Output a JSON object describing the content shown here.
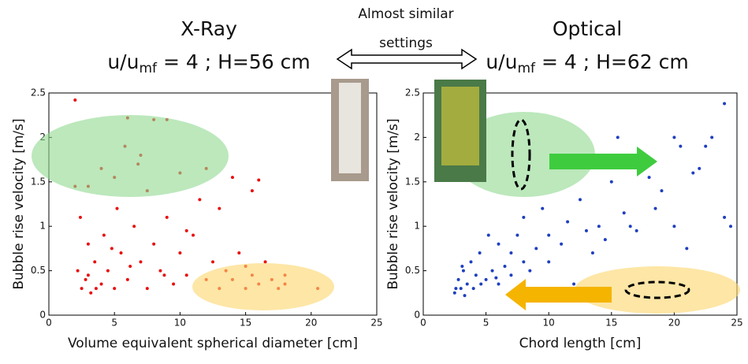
{
  "annotation": {
    "line1": "Almost similar",
    "line2": "settings"
  },
  "chart_data": [
    {
      "type": "scatter",
      "title": "X-Ray",
      "subtitle": {
        "main": "u/u",
        "sub": "mf",
        "rest": " = 4 ; H=56 cm"
      },
      "xlabel": "Volume equivalent spherical diameter [cm]",
      "ylabel": "Bubble rise velocity [m/s]",
      "color": "#e8100f",
      "xlim": [
        0,
        25
      ],
      "ylim": [
        0,
        2.5
      ],
      "xticks": [
        0,
        5,
        10,
        15,
        20,
        25
      ],
      "yticks": [
        0,
        0.5,
        1,
        1.5,
        2,
        2.5
      ],
      "x": [
        2,
        2,
        2.5,
        2.2,
        2.8,
        3,
        3.2,
        3.5,
        2.4,
        4,
        4.2,
        4.5,
        5,
        5.2,
        5.5,
        5.8,
        6,
        6,
        6.5,
        7,
        7,
        7.5,
        7.5,
        8,
        8,
        8.5,
        9,
        9,
        9.5,
        10,
        10,
        10.5,
        11,
        11.5,
        12,
        12,
        12.5,
        13,
        13,
        13.5,
        14,
        14,
        14.5,
        15,
        15,
        15.5,
        15.5,
        16,
        16,
        16.5,
        17,
        17.5,
        18,
        18,
        20.5,
        3,
        3.6,
        4.8,
        6.2,
        8.8,
        5,
        4,
        6.8,
        3,
        10.5
      ],
      "values": [
        2.42,
        1.45,
        0.3,
        0.5,
        0.4,
        0.8,
        0.25,
        0.6,
        1.1,
        0.35,
        0.9,
        0.5,
        0.3,
        1.2,
        0.7,
        1.9,
        2.22,
        0.4,
        1.0,
        0.6,
        1.8,
        0.3,
        1.4,
        0.8,
        2.2,
        0.5,
        1.1,
        2.2,
        0.35,
        0.7,
        1.6,
        0.45,
        0.9,
        1.3,
        0.4,
        1.65,
        0.6,
        0.3,
        1.2,
        0.5,
        0.4,
        1.55,
        0.7,
        0.3,
        0.55,
        1.4,
        0.45,
        0.35,
        1.52,
        0.6,
        0.4,
        0.3,
        0.45,
        0.35,
        0.3,
        0.45,
        0.3,
        0.75,
        0.55,
        0.45,
        1.55,
        1.65,
        1.7,
        1.45,
        0.95
      ]
    },
    {
      "type": "scatter",
      "title": "Optical",
      "subtitle": {
        "main": "u/u",
        "sub": "mf",
        "rest": " = 4 ; H=62 cm"
      },
      "xlabel": "Chord length [cm]",
      "ylabel": "Bubble rise velocity [m/s]",
      "color": "#1f3fbf",
      "xlim": [
        0,
        25
      ],
      "ylim": [
        0,
        2.5
      ],
      "xticks": [
        0,
        5,
        10,
        15,
        20,
        25
      ],
      "yticks": [
        0,
        0.5,
        1,
        1.5,
        2,
        2.5
      ],
      "x": [
        2.5,
        2.8,
        3,
        3.2,
        3.5,
        3.8,
        4,
        4.2,
        4.5,
        5,
        5.2,
        5.5,
        6,
        6,
        6.5,
        7,
        7,
        7.5,
        8,
        8,
        8.5,
        9,
        9.5,
        10,
        10,
        11,
        11.5,
        12,
        12.5,
        13,
        13.5,
        14,
        14.5,
        15,
        15.5,
        16,
        16.5,
        17,
        18,
        18.5,
        19,
        20,
        20,
        20.5,
        21,
        21.5,
        22,
        22.5,
        23,
        24,
        24,
        24.5,
        2.6,
        3.3,
        4.6,
        5.8,
        3.1
      ],
      "values": [
        0.25,
        0.4,
        0.3,
        0.5,
        0.35,
        0.6,
        0.3,
        0.45,
        0.7,
        0.4,
        0.9,
        0.5,
        0.35,
        0.8,
        0.55,
        0.45,
        0.7,
        0.9,
        0.6,
        1.1,
        0.5,
        0.75,
        1.2,
        0.9,
        0.6,
        0.8,
        1.05,
        0.35,
        1.3,
        0.95,
        0.7,
        1.0,
        0.85,
        1.5,
        2.0,
        1.15,
        1.0,
        0.95,
        1.55,
        1.2,
        1.4,
        1.0,
        2.0,
        1.9,
        0.75,
        1.6,
        1.65,
        1.9,
        2.0,
        2.38,
        1.1,
        1.0,
        0.3,
        0.22,
        0.35,
        0.42,
        0.55
      ]
    }
  ]
}
